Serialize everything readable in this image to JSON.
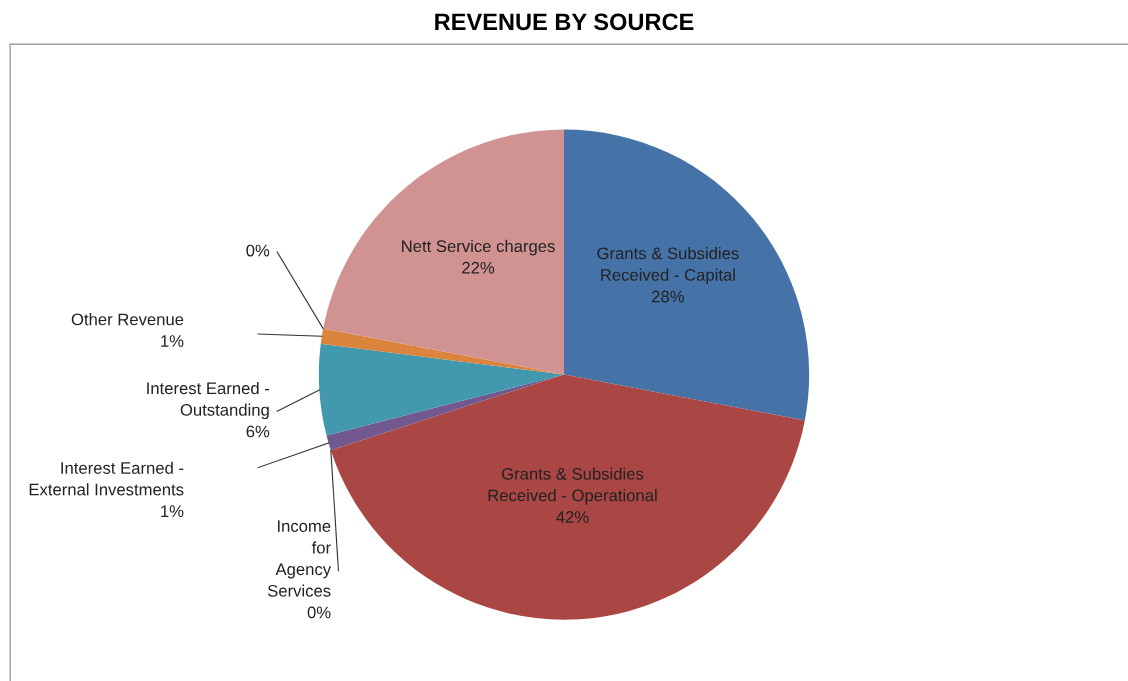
{
  "chart_data": {
    "type": "pie",
    "title": "REVENUE BY SOURCE",
    "categories": [
      "Grants & Subsidies\nReceived - Capital",
      "Grants & Subsidies\nReceived - Operational",
      "Income\nfor\nAgency\nServices",
      "Interest Earned -\nExternal Investments",
      "Interest Earned -\nOutstanding",
      "Other Revenue",
      null,
      "Nett Service charges"
    ],
    "values": [
      28,
      42,
      0,
      1,
      6,
      1,
      0,
      22
    ],
    "value_labels": [
      "28%",
      "42%",
      "0%",
      "1%",
      "6%",
      "1%",
      "0%",
      "22%"
    ],
    "colors": [
      "#4572a7",
      "#aa4643",
      "#89a54e",
      "#71588f",
      "#4198af",
      "#db843d",
      "#93a9cf",
      "#d19392"
    ],
    "legend": false
  }
}
